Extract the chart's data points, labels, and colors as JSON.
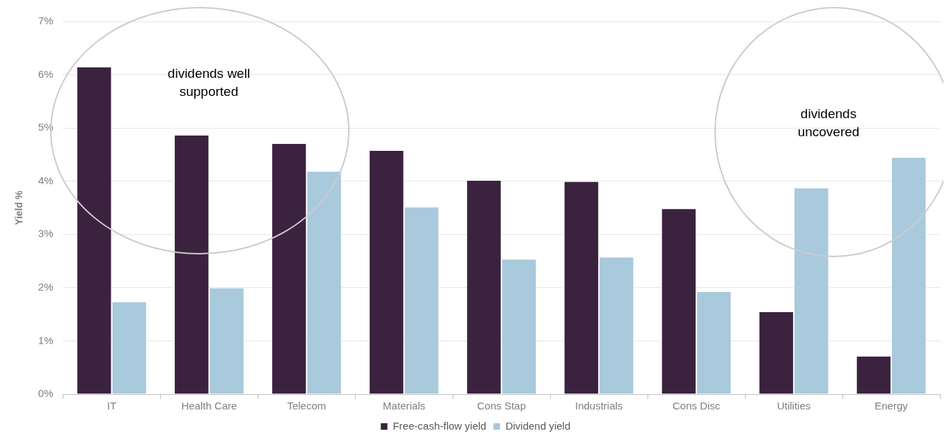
{
  "chart_data": {
    "type": "bar",
    "ylabel": "Yield %",
    "categories": [
      "IT",
      "Health Care",
      "Telecom",
      "Materials",
      "Cons Stap",
      "Industrials",
      "Cons Disc",
      "Utilities",
      "Energy"
    ],
    "series": [
      {
        "name": "Free-cash-flow yield",
        "color": "#3b2340",
        "values": [
          6.14,
          4.86,
          4.7,
          4.57,
          4.01,
          3.99,
          3.48,
          1.54,
          0.71
        ]
      },
      {
        "name": "Dividend yield",
        "color": "#a9c9dc",
        "values": [
          1.73,
          1.99,
          4.18,
          3.51,
          2.53,
          2.57,
          1.92,
          3.87,
          4.44
        ]
      }
    ],
    "ylim": [
      0,
      7
    ],
    "yticks": [
      {
        "value": 0,
        "label": "0%"
      },
      {
        "value": 1,
        "label": "1%"
      },
      {
        "value": 2,
        "label": "2%"
      },
      {
        "value": 3,
        "label": "3%"
      },
      {
        "value": 4,
        "label": "4%"
      },
      {
        "value": 5,
        "label": "5%"
      },
      {
        "value": 6,
        "label": "6%"
      },
      {
        "value": 7,
        "label": "7%"
      }
    ],
    "grid": "y",
    "legend": "bottom",
    "annotations": [
      "dividends well supported",
      "dividends uncovered"
    ]
  }
}
